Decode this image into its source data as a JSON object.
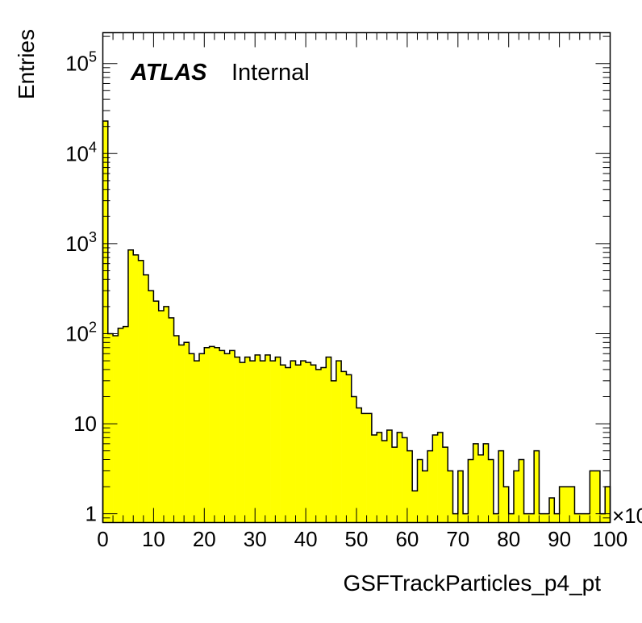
{
  "chart_data": {
    "type": "bar",
    "style": "step-filled histogram",
    "xlabel": "GSFTrackParticles_p4_pt",
    "ylabel": "Entries",
    "x_scale_multiplier": "×10",
    "y_scale": "log",
    "xlim": [
      0,
      100
    ],
    "ylim": [
      0.8,
      220000
    ],
    "bin_width": 1,
    "x_tick_labels": [
      "0",
      "10",
      "20",
      "30",
      "40",
      "50",
      "60",
      "70",
      "80",
      "90",
      "100"
    ],
    "y_tick_labels": [
      {
        "base": "1",
        "exp": "",
        "value": 1
      },
      {
        "base": "10",
        "exp": "",
        "value": 10
      },
      {
        "base": "10",
        "exp": "2",
        "value": 100
      },
      {
        "base": "10",
        "exp": "3",
        "value": 1000
      },
      {
        "base": "10",
        "exp": "4",
        "value": 10000
      },
      {
        "base": "10",
        "exp": "5",
        "value": 100000
      }
    ],
    "atlas_label": "ATLAS",
    "atlas_sublabel": "Internal",
    "fill_color": "#ffff00",
    "line_color": "#000000",
    "grid": false,
    "legend": "none",
    "values": [
      23000,
      100,
      95,
      115,
      120,
      850,
      750,
      650,
      450,
      300,
      230,
      180,
      200,
      150,
      95,
      75,
      80,
      60,
      50,
      60,
      70,
      72,
      70,
      65,
      60,
      65,
      55,
      48,
      55,
      50,
      58,
      50,
      58,
      50,
      55,
      45,
      42,
      50,
      45,
      50,
      48,
      45,
      40,
      42,
      55,
      30,
      50,
      38,
      35,
      20,
      15,
      13,
      13,
      7.5,
      8,
      6.5,
      8.5,
      5.5,
      8,
      7,
      5,
      1.8,
      4,
      3,
      5,
      7.5,
      8,
      5.5,
      3,
      1,
      3,
      1,
      4,
      6,
      4.5,
      6,
      4,
      1,
      5,
      2,
      1,
      3,
      4,
      1,
      1,
      5,
      1,
      1,
      1.5,
      1,
      2,
      2,
      2,
      1,
      1,
      1,
      3,
      3,
      1,
      2
    ]
  }
}
